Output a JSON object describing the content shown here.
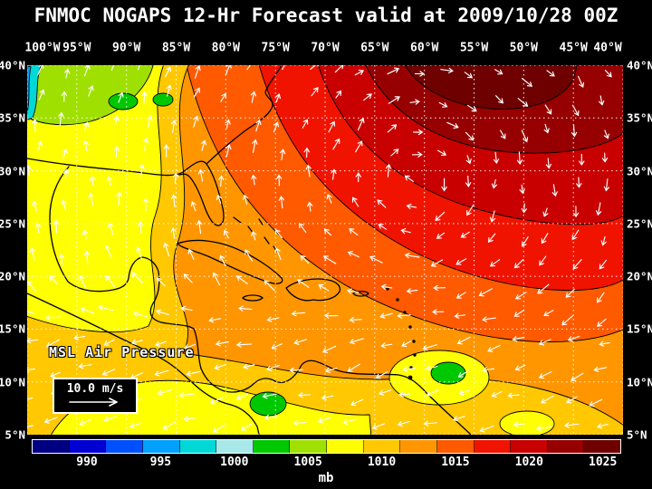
{
  "title": "FNMOC NOGAPS 12-Hr Forecast valid at 2009/10/28 00Z",
  "axes": {
    "lon_labels": [
      "100°W",
      "95°W",
      "90°W",
      "85°W",
      "80°W",
      "75°W",
      "70°W",
      "65°W",
      "60°W",
      "55°W",
      "50°W",
      "45°W",
      "40°W"
    ],
    "lat_labels": [
      "40°N",
      "35°N",
      "30°N",
      "25°N",
      "20°N",
      "15°N",
      "10°N",
      "5°N"
    ]
  },
  "map": {
    "field_label": "MSL Air Pressure",
    "wind_scale": "10.0 m/s"
  },
  "colorbar": {
    "unit": "mb",
    "ticks": [
      "990",
      "995",
      "1000",
      "1005",
      "1010",
      "1015",
      "1020",
      "1025"
    ],
    "colors": [
      "#000082",
      "#0000D2",
      "#0050FF",
      "#00A0FF",
      "#00D8D8",
      "#A8E8E8",
      "#00C800",
      "#A0E000",
      "#FFFF00",
      "#FFC800",
      "#FF9600",
      "#FF5A00",
      "#F01400",
      "#C80000",
      "#960000",
      "#6E0000"
    ]
  },
  "chart_data": {
    "type": "heatmap",
    "title": "FNMOC NOGAPS 12-Hr Forecast valid at 2009/10/28 00Z",
    "variable": "MSL Air Pressure",
    "unit": "mb",
    "x_ticks": [
      "100°W",
      "95°W",
      "90°W",
      "85°W",
      "80°W",
      "75°W",
      "70°W",
      "65°W",
      "60°W",
      "55°W",
      "50°W",
      "45°W",
      "40°W"
    ],
    "y_ticks": [
      "40°N",
      "35°N",
      "30°N",
      "25°N",
      "20°N",
      "15°N",
      "10°N",
      "5°N"
    ],
    "colorbar_ticks_mb": [
      990,
      995,
      1000,
      1005,
      1010,
      1015,
      1020,
      1025
    ],
    "wind_reference_ms": 10.0,
    "reading": "Broad subtropical high (band >1025 mb, dark red) over the western Atlantic near 65°W/35°N with clockwise wind vectors; pressure decreases southwest to ~1005-1010 mb (yellow/green) over Mexico, Central America and the eastern Pacific; small ~995-1000 mb (cyan) pocket at the 100°W/40°N corner; easterly trade-wind vectors south of 20°N"
  }
}
